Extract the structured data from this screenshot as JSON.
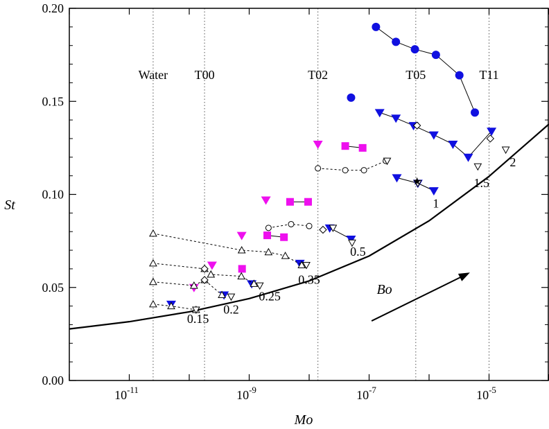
{
  "chart_data": {
    "type": "scatter",
    "xlabel": "Mo",
    "ylabel": "St",
    "xscale": "log",
    "xlim": [
      1e-12,
      0.0001
    ],
    "ylim": [
      0,
      0.2
    ],
    "grid": false,
    "legend": "none",
    "y_ticks": [
      "0.00",
      "0.05",
      "0.10",
      "0.15",
      "0.20"
    ],
    "x_tick_labels": [
      {
        "base": "10",
        "exp": "-11",
        "value": 1e-11
      },
      {
        "base": "10",
        "exp": "-9",
        "value": 1e-09
      },
      {
        "base": "10",
        "exp": "-7",
        "value": 1e-07
      },
      {
        "base": "10",
        "exp": "-5",
        "value": 1e-05
      }
    ],
    "fluid_lines": [
      {
        "label": "Water",
        "mo": 2.5e-11
      },
      {
        "label": "T00",
        "mo": 1.8e-10
      },
      {
        "label": "T02",
        "mo": 1.4e-08
      },
      {
        "label": "T05",
        "mo": 6e-07
      },
      {
        "label": "T11",
        "mo": 1e-05
      }
    ],
    "bo_labels": [
      {
        "text": "0.15",
        "mo": 1.4e-10,
        "st": 0.031
      },
      {
        "text": "0.2",
        "mo": 5e-10,
        "st": 0.036
      },
      {
        "text": "0.25",
        "mo": 2.2e-09,
        "st": 0.043
      },
      {
        "text": "0.35",
        "mo": 1e-08,
        "st": 0.052
      },
      {
        "text": "0.5",
        "mo": 6.5e-08,
        "st": 0.067
      },
      {
        "text": "1",
        "mo": 1.3e-06,
        "st": 0.093
      },
      {
        "text": "1.5",
        "mo": 7.5e-06,
        "st": 0.104
      },
      {
        "text": "2",
        "mo": 2.5e-05,
        "st": 0.115
      }
    ],
    "annotation": {
      "text": "Bo",
      "arrow_from": {
        "mo": 1.1e-07,
        "st": 0.032
      },
      "arrow_to": {
        "mo": 4.8e-06,
        "st": 0.058
      }
    },
    "curve": {
      "name": "",
      "points": [
        [
          1e-12,
          0.0277
        ],
        [
          1e-11,
          0.0316
        ],
        [
          1e-10,
          0.0369
        ],
        [
          1e-09,
          0.044
        ],
        [
          1e-08,
          0.0535
        ],
        [
          1e-07,
          0.0669
        ],
        [
          1e-06,
          0.0858
        ],
        [
          1e-05,
          0.1097
        ],
        [
          0.0001,
          0.1378
        ]
      ]
    },
    "series": [
      {
        "marker": "circle-filled",
        "color": "#1010e0",
        "line": "solid",
        "points": [
          [
            1.3e-07,
            0.19
          ],
          [
            2.8e-07,
            0.182
          ],
          [
            5.8e-07,
            0.178
          ],
          [
            1.3e-06,
            0.175
          ],
          [
            3.2e-06,
            0.164
          ],
          [
            5.8e-06,
            0.144
          ]
        ]
      },
      {
        "marker": "circle-filled",
        "color": "#1010e0",
        "line": "solid",
        "points": [
          [
            5e-08,
            0.152
          ]
        ]
      },
      {
        "marker": "tri-down-filled",
        "color": "#1010e0",
        "line": "solid",
        "points": [
          [
            1.5e-07,
            0.144
          ],
          [
            2.8e-07,
            0.141
          ],
          [
            5.5e-07,
            0.137
          ],
          [
            1.2e-06,
            0.132
          ],
          [
            2.5e-06,
            0.127
          ],
          [
            4.5e-06,
            0.12
          ],
          [
            1.1e-05,
            0.134
          ]
        ]
      },
      {
        "marker": "tri-down-filled",
        "color": "#1010e0",
        "line": "solid",
        "points": [
          [
            2.9e-07,
            0.109
          ],
          [
            6.5e-07,
            0.106
          ],
          [
            1.2e-06,
            0.102
          ]
        ]
      },
      {
        "marker": "tri-down-filled",
        "color": "#1010e0",
        "line": "solid",
        "points": [
          [
            2.2e-08,
            0.082
          ],
          [
            5e-08,
            0.076
          ]
        ]
      },
      {
        "marker": "tri-down-filled",
        "color": "#1010e0",
        "line": "solid",
        "points": [
          [
            7e-09,
            0.063
          ]
        ]
      },
      {
        "marker": "tri-down-filled",
        "color": "#1010e0",
        "line": "solid",
        "points": [
          [
            1.1e-09,
            0.052
          ]
        ]
      },
      {
        "marker": "tri-down-filled",
        "color": "#1010e0",
        "line": "solid",
        "points": [
          [
            3.8e-10,
            0.046
          ]
        ]
      },
      {
        "marker": "tri-down-filled",
        "color": "#1010e0",
        "line": "solid",
        "points": [
          [
            5e-11,
            0.041
          ]
        ]
      },
      {
        "marker": "tri-down-filled",
        "color": "#ee10ee",
        "line": "solid",
        "points": [
          [
            1.4e-08,
            0.127
          ]
        ]
      },
      {
        "marker": "square-filled",
        "color": "#ee10ee",
        "line": "solid",
        "points": [
          [
            4e-08,
            0.126
          ],
          [
            7.8e-08,
            0.125
          ]
        ]
      },
      {
        "marker": "tri-down-filled",
        "color": "#ee10ee",
        "line": "solid",
        "points": [
          [
            1.9e-09,
            0.097
          ]
        ]
      },
      {
        "marker": "square-filled",
        "color": "#ee10ee",
        "line": "solid",
        "points": [
          [
            4.8e-09,
            0.096
          ],
          [
            9.6e-09,
            0.096
          ]
        ]
      },
      {
        "marker": "tri-down-filled",
        "color": "#ee10ee",
        "line": "solid",
        "points": [
          [
            7.5e-10,
            0.078
          ]
        ]
      },
      {
        "marker": "square-filled",
        "color": "#ee10ee",
        "line": "solid",
        "points": [
          [
            2e-09,
            0.078
          ],
          [
            3.8e-09,
            0.077
          ]
        ]
      },
      {
        "marker": "tri-down-filled",
        "color": "#ee10ee",
        "line": "solid",
        "points": [
          [
            2.4e-10,
            0.062
          ]
        ]
      },
      {
        "marker": "square-filled",
        "color": "#ee10ee",
        "line": "solid",
        "points": [
          [
            7.6e-10,
            0.06
          ]
        ]
      },
      {
        "marker": "tri-down-filled",
        "color": "#ee10ee",
        "line": "solid",
        "points": [
          [
            1.2e-10,
            0.05
          ]
        ]
      },
      {
        "marker": "circle-open",
        "color": "#000000",
        "line": "dashed",
        "points": [
          [
            1.4e-08,
            0.114
          ],
          [
            4e-08,
            0.113
          ],
          [
            8.2e-08,
            0.113
          ],
          [
            1.9e-07,
            0.118
          ]
        ]
      },
      {
        "marker": "circle-open",
        "color": "#000000",
        "line": "dashed",
        "points": [
          [
            2.1e-09,
            0.082
          ],
          [
            5e-09,
            0.084
          ],
          [
            1e-08,
            0.083
          ]
        ]
      },
      {
        "marker": "tri-up-open",
        "color": "#000000",
        "line": "dashed",
        "points": [
          [
            2.5e-11,
            0.079
          ],
          [
            7.5e-10,
            0.07
          ],
          [
            2.1e-09,
            0.069
          ],
          [
            4e-09,
            0.067
          ],
          [
            7.5e-09,
            0.062
          ]
        ]
      },
      {
        "marker": "tri-up-open",
        "color": "#000000",
        "line": "dashed",
        "points": [
          [
            2.5e-11,
            0.063
          ],
          [
            1.8e-10,
            0.06
          ],
          [
            2.3e-10,
            0.057
          ],
          [
            7.4e-10,
            0.056
          ],
          [
            1.2e-09,
            0.052
          ]
        ]
      },
      {
        "marker": "tri-up-open",
        "color": "#000000",
        "line": "dashed",
        "points": [
          [
            2.5e-11,
            0.053
          ],
          [
            1.2e-10,
            0.051
          ],
          [
            1.8e-10,
            0.054
          ],
          [
            3.5e-10,
            0.046
          ]
        ]
      },
      {
        "marker": "tri-up-open",
        "color": "#000000",
        "line": "dashed",
        "points": [
          [
            2.5e-11,
            0.041
          ],
          [
            5e-11,
            0.04
          ],
          [
            1.3e-10,
            0.038
          ]
        ]
      },
      {
        "marker": "tri-down-open",
        "color": "#000000",
        "line": "none",
        "points": [
          [
            1.3e-10,
            0.038
          ],
          [
            5e-10,
            0.045
          ],
          [
            1.5e-09,
            0.051
          ],
          [
            9e-09,
            0.062
          ],
          [
            2.5e-08,
            0.082
          ],
          [
            5.2e-08,
            0.074
          ],
          [
            2e-07,
            0.118
          ],
          [
            6.5e-07,
            0.106
          ],
          [
            6.5e-06,
            0.115
          ],
          [
            1.9e-05,
            0.124
          ]
        ]
      },
      {
        "marker": "diamond-open",
        "color": "#000000",
        "line": "none",
        "points": [
          [
            1.8e-10,
            0.06
          ],
          [
            1.8e-10,
            0.054
          ],
          [
            1.7e-08,
            0.081
          ],
          [
            6.3e-07,
            0.137
          ],
          [
            1.05e-05,
            0.13
          ]
        ]
      },
      {
        "marker": "star",
        "color": "#000000",
        "line": "none",
        "points": [
          [
            6.3e-07,
            0.107
          ]
        ]
      }
    ]
  }
}
